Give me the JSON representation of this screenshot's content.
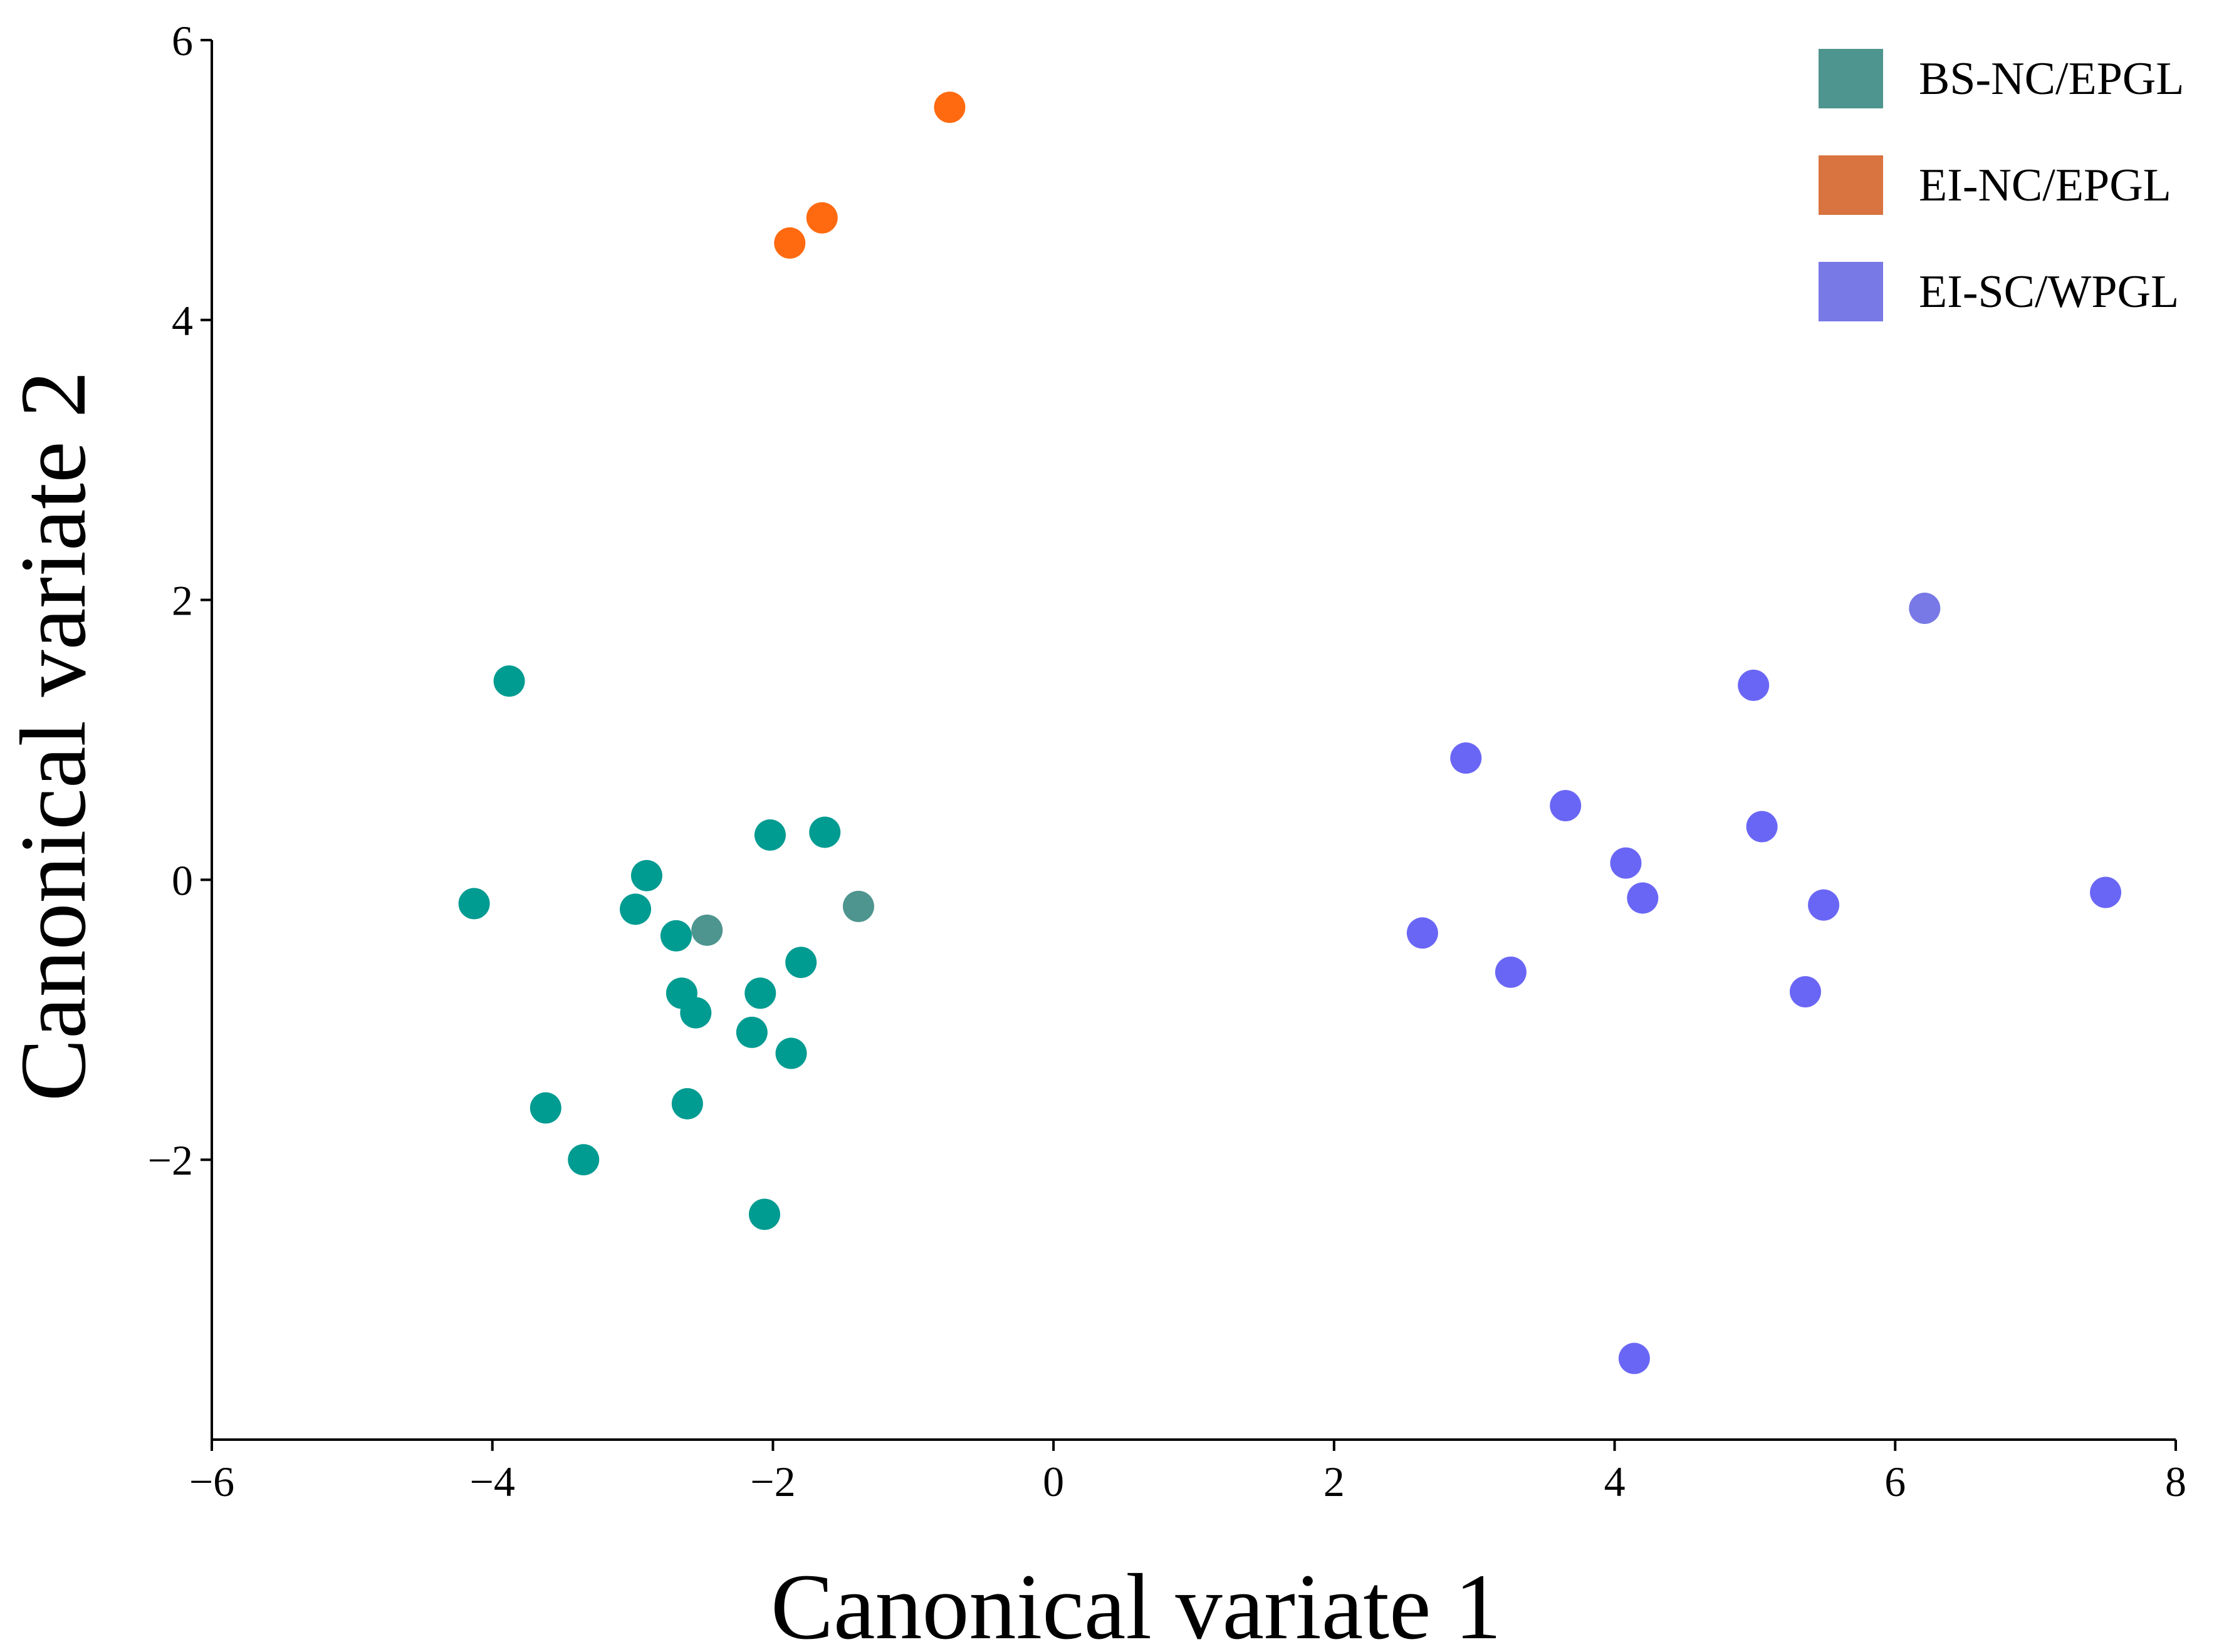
{
  "chart_data": {
    "type": "scatter",
    "title": "",
    "xlabel": "Canonical variate 1",
    "ylabel": "Canonical variate 2",
    "xlim": [
      -6,
      8
    ],
    "ylim": [
      -4,
      6
    ],
    "xticks": [
      -6,
      -4,
      -2,
      0,
      2,
      4,
      6,
      8
    ],
    "xtick_labels": [
      "−6",
      "−4",
      "−2",
      "0",
      "2",
      "4",
      "6",
      "8"
    ],
    "yticks": [
      -2,
      0,
      2,
      4,
      6
    ],
    "ytick_labels": [
      "−2",
      "0",
      "2",
      "4",
      "6"
    ],
    "grid": false,
    "legend_position": "top-right",
    "legend": [
      {
        "label": "BS-NC/EPGL",
        "color": "#4f958f"
      },
      {
        "label": "EI-NC/EPGL",
        "color": "#d97340"
      },
      {
        "label": "EI-SC/WPGL",
        "color": "#7878e6"
      }
    ],
    "series": [
      {
        "name": "BS-NC/EPGL",
        "color": "#009b91",
        "points": [
          {
            "x": -3.88,
            "y": 1.42
          },
          {
            "x": -4.13,
            "y": -0.17
          },
          {
            "x": -3.62,
            "y": -1.63
          },
          {
            "x": -3.35,
            "y": -2.0
          },
          {
            "x": -2.9,
            "y": 0.03
          },
          {
            "x": -2.98,
            "y": -0.21
          },
          {
            "x": -2.69,
            "y": -0.4
          },
          {
            "x": -2.65,
            "y": -0.81
          },
          {
            "x": -2.55,
            "y": -0.95
          },
          {
            "x": -2.61,
            "y": -1.6
          },
          {
            "x": -2.47,
            "y": -0.36,
            "color": "#4f958f"
          },
          {
            "x": -2.02,
            "y": 0.32
          },
          {
            "x": -1.63,
            "y": 0.34
          },
          {
            "x": -1.39,
            "y": -0.19,
            "color": "#4f958f"
          },
          {
            "x": -1.8,
            "y": -0.59
          },
          {
            "x": -2.09,
            "y": -0.81
          },
          {
            "x": -2.15,
            "y": -1.09
          },
          {
            "x": -1.87,
            "y": -1.24
          },
          {
            "x": -2.06,
            "y": -2.39
          }
        ]
      },
      {
        "name": "EI-NC/EPGL",
        "color": "#ff6a10",
        "points": [
          {
            "x": -0.74,
            "y": 5.52
          },
          {
            "x": -1.65,
            "y": 4.73
          },
          {
            "x": -1.88,
            "y": 4.55
          }
        ]
      },
      {
        "name": "EI-SC/WPGL",
        "color": "#6a66f5",
        "points": [
          {
            "x": 6.21,
            "y": 1.94,
            "color": "#7878e6"
          },
          {
            "x": 4.99,
            "y": 1.39
          },
          {
            "x": 2.94,
            "y": 0.87
          },
          {
            "x": 3.65,
            "y": 0.53
          },
          {
            "x": 5.05,
            "y": 0.38
          },
          {
            "x": 4.08,
            "y": 0.12
          },
          {
            "x": 4.2,
            "y": -0.13
          },
          {
            "x": 5.49,
            "y": -0.18
          },
          {
            "x": 7.5,
            "y": -0.09
          },
          {
            "x": 2.63,
            "y": -0.38
          },
          {
            "x": 3.26,
            "y": -0.66
          },
          {
            "x": 5.36,
            "y": -0.8
          },
          {
            "x": 4.14,
            "y": -3.42
          }
        ]
      }
    ]
  }
}
